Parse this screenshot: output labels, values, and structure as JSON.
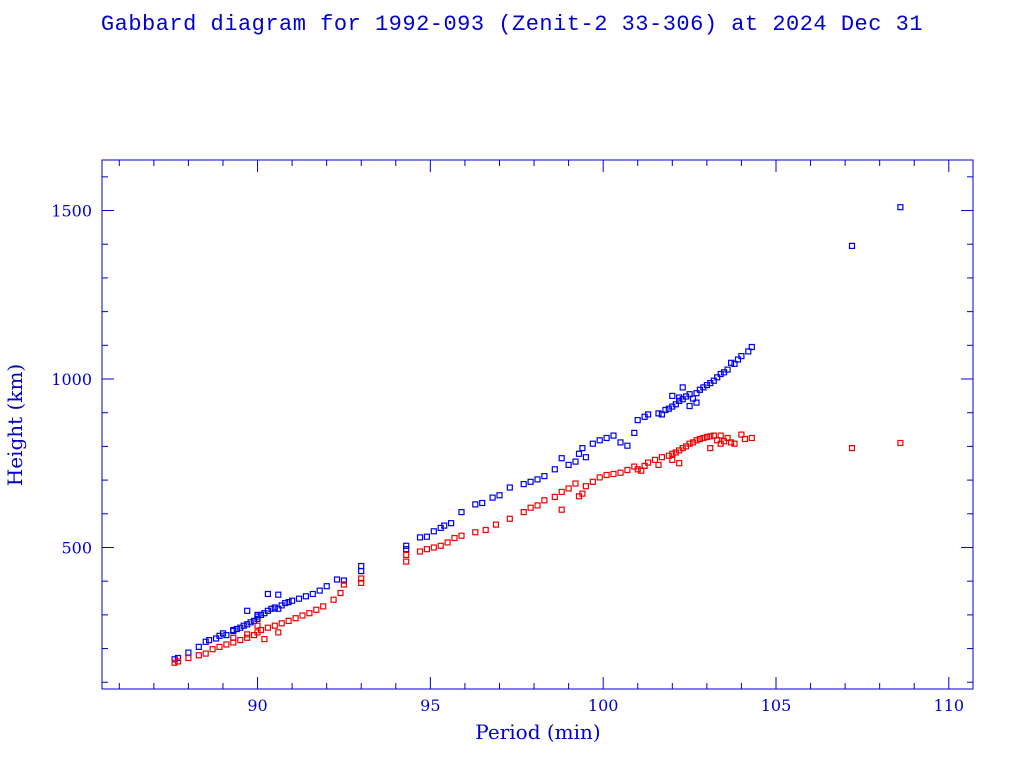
{
  "chart_data": {
    "type": "scatter",
    "title": "Gabbard diagram for 1992-093 (Zenit-2 33-306) at 2024 Dec 31",
    "xlabel": "Period (min)",
    "ylabel": "Height (km)",
    "xlim": [
      85.5,
      110.7
    ],
    "ylim": [
      80,
      1650
    ],
    "xticks": [
      90,
      95,
      100,
      105,
      110
    ],
    "yticks": [
      500,
      1000,
      1500
    ],
    "x_minor_step": 1,
    "y_minor_step": 100,
    "grid": false,
    "legend": "none",
    "marker": "small hollow square",
    "series": [
      {
        "role": "apogee",
        "color": "#0000ee",
        "points": [
          [
            87.6,
            168
          ],
          [
            87.7,
            172
          ],
          [
            88.0,
            188
          ],
          [
            88.3,
            205
          ],
          [
            88.5,
            220
          ],
          [
            88.6,
            225
          ],
          [
            88.8,
            230
          ],
          [
            88.9,
            238
          ],
          [
            89.0,
            245
          ],
          [
            89.1,
            240
          ],
          [
            89.3,
            252
          ],
          [
            89.4,
            258
          ],
          [
            89.5,
            262
          ],
          [
            89.6,
            268
          ],
          [
            89.7,
            272
          ],
          [
            89.8,
            278
          ],
          [
            89.9,
            282
          ],
          [
            90.0,
            288
          ],
          [
            90.0,
            295
          ],
          [
            90.1,
            300
          ],
          [
            90.2,
            305
          ],
          [
            90.3,
            312
          ],
          [
            90.4,
            318
          ],
          [
            90.5,
            322
          ],
          [
            90.6,
            318
          ],
          [
            90.7,
            328
          ],
          [
            90.8,
            335
          ],
          [
            90.9,
            338
          ],
          [
            91.0,
            342
          ],
          [
            91.2,
            348
          ],
          [
            91.4,
            355
          ],
          [
            91.6,
            362
          ],
          [
            91.8,
            372
          ],
          [
            92.0,
            385
          ],
          [
            92.3,
            405
          ],
          [
            92.5,
            402
          ],
          [
            93.0,
            430
          ],
          [
            93.0,
            445
          ],
          [
            89.7,
            312
          ],
          [
            90.3,
            362
          ],
          [
            90.6,
            360
          ],
          [
            90.0,
            300
          ],
          [
            89.3,
            255
          ],
          [
            94.3,
            505
          ],
          [
            94.3,
            495
          ],
          [
            94.7,
            530
          ],
          [
            94.9,
            532
          ],
          [
            95.1,
            548
          ],
          [
            95.3,
            558
          ],
          [
            95.4,
            565
          ],
          [
            95.6,
            572
          ],
          [
            95.9,
            605
          ],
          [
            96.3,
            628
          ],
          [
            96.5,
            632
          ],
          [
            96.8,
            648
          ],
          [
            97.0,
            655
          ],
          [
            97.3,
            678
          ],
          [
            97.7,
            688
          ],
          [
            97.9,
            695
          ],
          [
            98.1,
            702
          ],
          [
            98.3,
            712
          ],
          [
            98.6,
            732
          ],
          [
            98.8,
            765
          ],
          [
            99.0,
            745
          ],
          [
            99.2,
            755
          ],
          [
            99.3,
            778
          ],
          [
            99.4,
            795
          ],
          [
            99.5,
            768
          ],
          [
            99.7,
            808
          ],
          [
            99.9,
            818
          ],
          [
            100.1,
            825
          ],
          [
            100.3,
            832
          ],
          [
            100.5,
            812
          ],
          [
            100.7,
            802
          ],
          [
            100.9,
            840
          ],
          [
            101.0,
            878
          ],
          [
            101.2,
            888
          ],
          [
            101.3,
            895
          ],
          [
            101.6,
            898
          ],
          [
            101.8,
            908
          ],
          [
            101.9,
            912
          ],
          [
            102.0,
            918
          ],
          [
            102.1,
            925
          ],
          [
            102.2,
            935
          ],
          [
            102.3,
            940
          ],
          [
            102.4,
            948
          ],
          [
            102.5,
            955
          ],
          [
            102.6,
            942
          ],
          [
            102.7,
            958
          ],
          [
            102.8,
            968
          ],
          [
            102.9,
            975
          ],
          [
            103.0,
            982
          ],
          [
            103.1,
            988
          ],
          [
            103.2,
            995
          ],
          [
            103.3,
            1005
          ],
          [
            103.4,
            1015
          ],
          [
            103.6,
            1028
          ],
          [
            103.7,
            1048
          ],
          [
            103.9,
            1058
          ],
          [
            104.0,
            1068
          ],
          [
            104.2,
            1082
          ],
          [
            104.3,
            1095
          ],
          [
            102.0,
            950
          ],
          [
            102.3,
            975
          ],
          [
            102.5,
            920
          ],
          [
            101.7,
            895
          ],
          [
            102.2,
            945
          ],
          [
            102.7,
            930
          ],
          [
            103.5,
            1020
          ],
          [
            103.8,
            1045
          ],
          [
            107.2,
            1395
          ],
          [
            108.6,
            1510
          ]
        ]
      },
      {
        "role": "perigee",
        "color": "#ee0000",
        "points": [
          [
            87.6,
            158
          ],
          [
            87.7,
            162
          ],
          [
            88.0,
            172
          ],
          [
            88.3,
            180
          ],
          [
            88.5,
            185
          ],
          [
            88.7,
            198
          ],
          [
            88.9,
            205
          ],
          [
            89.1,
            212
          ],
          [
            89.3,
            218
          ],
          [
            89.5,
            225
          ],
          [
            89.7,
            232
          ],
          [
            89.9,
            240
          ],
          [
            90.0,
            248
          ],
          [
            90.1,
            255
          ],
          [
            90.3,
            262
          ],
          [
            90.5,
            268
          ],
          [
            90.7,
            275
          ],
          [
            90.9,
            282
          ],
          [
            91.1,
            290
          ],
          [
            91.3,
            298
          ],
          [
            91.5,
            305
          ],
          [
            91.7,
            315
          ],
          [
            91.9,
            325
          ],
          [
            92.2,
            345
          ],
          [
            92.4,
            365
          ],
          [
            92.5,
            390
          ],
          [
            93.0,
            395
          ],
          [
            93.0,
            408
          ],
          [
            89.7,
            242
          ],
          [
            90.2,
            228
          ],
          [
            90.6,
            248
          ],
          [
            90.0,
            268
          ],
          [
            89.3,
            232
          ],
          [
            94.3,
            458
          ],
          [
            94.3,
            478
          ],
          [
            94.7,
            488
          ],
          [
            94.9,
            495
          ],
          [
            95.1,
            500
          ],
          [
            95.3,
            505
          ],
          [
            95.5,
            515
          ],
          [
            95.7,
            528
          ],
          [
            95.9,
            535
          ],
          [
            96.3,
            545
          ],
          [
            96.6,
            552
          ],
          [
            96.9,
            568
          ],
          [
            97.3,
            585
          ],
          [
            97.7,
            605
          ],
          [
            97.9,
            618
          ],
          [
            98.1,
            625
          ],
          [
            98.3,
            640
          ],
          [
            98.6,
            650
          ],
          [
            98.8,
            612
          ],
          [
            98.8,
            665
          ],
          [
            99.0,
            675
          ],
          [
            99.2,
            690
          ],
          [
            99.3,
            652
          ],
          [
            99.4,
            660
          ],
          [
            99.5,
            682
          ],
          [
            99.7,
            695
          ],
          [
            99.9,
            708
          ],
          [
            100.1,
            715
          ],
          [
            100.3,
            718
          ],
          [
            100.5,
            722
          ],
          [
            100.7,
            730
          ],
          [
            100.9,
            740
          ],
          [
            101.0,
            732
          ],
          [
            101.2,
            742
          ],
          [
            101.3,
            752
          ],
          [
            101.5,
            760
          ],
          [
            101.7,
            768
          ],
          [
            101.9,
            772
          ],
          [
            102.0,
            778
          ],
          [
            102.1,
            782
          ],
          [
            102.2,
            788
          ],
          [
            102.3,
            795
          ],
          [
            102.4,
            800
          ],
          [
            102.5,
            808
          ],
          [
            102.6,
            812
          ],
          [
            102.7,
            818
          ],
          [
            102.8,
            822
          ],
          [
            102.9,
            825
          ],
          [
            103.0,
            828
          ],
          [
            103.1,
            830
          ],
          [
            103.2,
            832
          ],
          [
            103.3,
            818
          ],
          [
            103.4,
            808
          ],
          [
            103.5,
            815
          ],
          [
            103.6,
            825
          ],
          [
            103.7,
            812
          ],
          [
            103.8,
            808
          ],
          [
            104.0,
            835
          ],
          [
            104.1,
            822
          ],
          [
            104.3,
            825
          ],
          [
            102.0,
            760
          ],
          [
            102.2,
            750
          ],
          [
            101.6,
            745
          ],
          [
            101.1,
            728
          ],
          [
            103.1,
            795
          ],
          [
            103.4,
            832
          ],
          [
            107.2,
            795
          ],
          [
            108.6,
            810
          ]
        ]
      }
    ]
  }
}
